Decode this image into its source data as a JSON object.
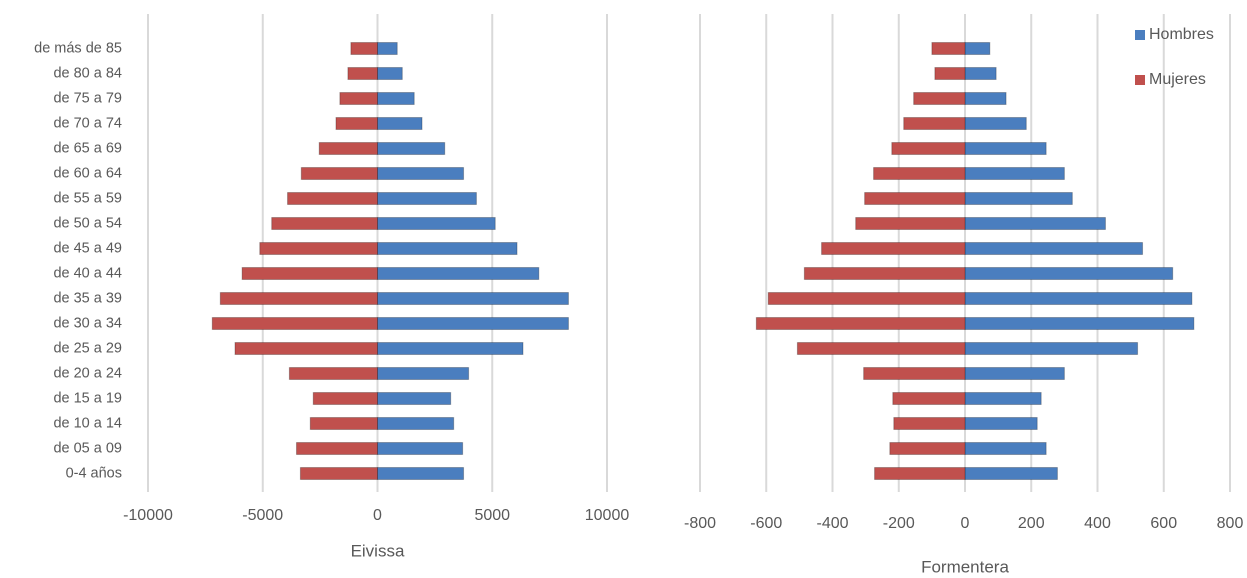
{
  "chart_data": [
    {
      "type": "bar",
      "orientation": "horizontal",
      "x_label": "Eivissa",
      "categories": [
        "de más de 85",
        "de 80 a 84",
        "de 75 a 79",
        "de 70 a 74",
        "de 65 a 69",
        "de 60 a 64",
        "de 55 a 59",
        "de 50 a 54",
        "de 45 a 49",
        "de 40 a 44",
        "de 35 a 39",
        "de 30 a 34",
        "de 25 a 29",
        "de 20 a 24",
        "de 15 a 19",
        "de 10 a 14",
        "de 05 a 09",
        "0-4 años"
      ],
      "series": [
        {
          "color": "#4a7ebf",
          "values": [
            860,
            1080,
            1600,
            1940,
            2930,
            3750,
            4310,
            5130,
            6080,
            7030,
            8320,
            8320,
            6340,
            3970,
            3190,
            3320,
            3710,
            3750
          ]
        },
        {
          "color": "#c0504d",
          "values": [
            -1160,
            -1290,
            -1640,
            -1810,
            -2540,
            -3320,
            -3920,
            -4610,
            -5130,
            -5900,
            -6850,
            -7200,
            -6210,
            -3840,
            -2800,
            -2930,
            -3530,
            -3360
          ]
        }
      ],
      "xlim": [
        -10000,
        10000
      ],
      "xticks": [
        -10000,
        -5000,
        0,
        5000,
        10000
      ],
      "grid": true
    },
    {
      "type": "bar",
      "orientation": "horizontal",
      "x_label": "Formentera",
      "series": [
        {
          "name": "Hombres",
          "color": "#4a7ebf",
          "values": [
            75,
            94,
            124,
            185,
            245,
            300,
            324,
            424,
            536,
            627,
            685,
            691,
            521,
            300,
            230,
            218,
            245,
            279
          ]
        },
        {
          "name": "Mujeres",
          "color": "#c0504d",
          "values": [
            -100,
            -91,
            -155,
            -185,
            -221,
            -276,
            -303,
            -330,
            -433,
            -485,
            -594,
            -630,
            -506,
            -306,
            -218,
            -215,
            -227,
            -273
          ]
        }
      ],
      "xlim": [
        -800,
        800
      ],
      "xticks": [
        -800,
        -600,
        -400,
        -200,
        0,
        200,
        400,
        600,
        800
      ],
      "grid": true,
      "legend": "upper right"
    }
  ]
}
